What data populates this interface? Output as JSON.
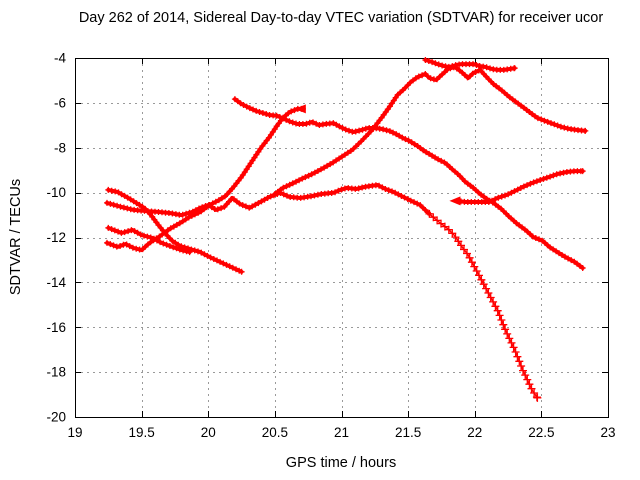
{
  "title": "Day 262 of 2014, Sidereal Day-to-day VTEC variation (SDTVAR) for receiver ucor",
  "chart_data": {
    "type": "scatter",
    "title": "Day 262 of 2014, Sidereal Day-to-day VTEC variation (SDTVAR) for receiver ucor",
    "xlabel": "GPS time / hours",
    "ylabel": "SDTVAR / TECUs",
    "xlim": [
      19,
      23
    ],
    "ylim": [
      -20,
      -4
    ],
    "xtick_step": 0.5,
    "ytick_step": 2,
    "grid": true,
    "legend": "none",
    "series_color": "#ff0000",
    "frame_color": "#000000",
    "grid_color": "#9a9a9a",
    "series": [
      {
        "name": "s1",
        "style": "band",
        "points": [
          [
            19.25,
            -9.88
          ],
          [
            19.32,
            -9.97
          ],
          [
            19.4,
            -10.24
          ],
          [
            19.46,
            -10.46
          ],
          [
            19.52,
            -10.68
          ],
          [
            19.57,
            -11.0
          ],
          [
            19.62,
            -11.4
          ],
          [
            19.68,
            -11.84
          ],
          [
            19.73,
            -12.15
          ],
          [
            19.79,
            -12.38
          ],
          [
            19.86,
            -12.51
          ],
          [
            19.94,
            -12.65
          ],
          [
            20.01,
            -12.87
          ],
          [
            20.09,
            -13.09
          ],
          [
            20.17,
            -13.31
          ],
          [
            20.25,
            -13.53
          ]
        ]
      },
      {
        "name": "s2",
        "style": "band",
        "points": [
          [
            19.24,
            -10.46
          ],
          [
            19.35,
            -10.64
          ],
          [
            19.44,
            -10.77
          ],
          [
            19.53,
            -10.82
          ],
          [
            19.62,
            -10.86
          ],
          [
            19.71,
            -10.91
          ],
          [
            19.8,
            -11.0
          ],
          [
            19.88,
            -10.86
          ],
          [
            19.94,
            -10.68
          ],
          [
            20.0,
            -10.55
          ],
          [
            20.06,
            -10.77
          ],
          [
            20.12,
            -10.64
          ],
          [
            20.18,
            -10.24
          ],
          [
            20.24,
            -10.51
          ],
          [
            20.31,
            -10.68
          ],
          [
            20.39,
            -10.42
          ],
          [
            20.46,
            -10.19
          ],
          [
            20.54,
            -10.01
          ],
          [
            20.61,
            -10.19
          ],
          [
            20.69,
            -10.24
          ],
          [
            20.78,
            -10.15
          ],
          [
            20.85,
            -10.06
          ],
          [
            20.94,
            -10.01
          ],
          [
            20.99,
            -9.88
          ],
          [
            21.04,
            -9.79
          ],
          [
            21.11,
            -9.84
          ],
          [
            21.17,
            -9.75
          ],
          [
            21.22,
            -9.7
          ],
          [
            21.27,
            -9.66
          ],
          [
            21.33,
            -9.84
          ],
          [
            21.39,
            -9.97
          ],
          [
            21.45,
            -10.15
          ],
          [
            21.51,
            -10.33
          ],
          [
            21.59,
            -10.55
          ],
          [
            21.66,
            -10.95
          ]
        ]
      },
      {
        "name": "s2-plunge",
        "style": "plus",
        "points": [
          [
            21.66,
            -10.95
          ],
          [
            21.74,
            -11.35
          ],
          [
            21.8,
            -11.62
          ],
          [
            21.85,
            -11.93
          ],
          [
            21.9,
            -12.38
          ],
          [
            21.95,
            -12.78
          ],
          [
            21.99,
            -13.22
          ],
          [
            22.05,
            -13.89
          ],
          [
            22.11,
            -14.56
          ],
          [
            22.17,
            -15.23
          ],
          [
            22.23,
            -16.12
          ],
          [
            22.3,
            -17.01
          ],
          [
            22.36,
            -17.9
          ],
          [
            22.43,
            -18.79
          ],
          [
            22.47,
            -19.15
          ]
        ]
      },
      {
        "name": "s3",
        "style": "band",
        "points": [
          [
            19.25,
            -11.57
          ],
          [
            19.35,
            -11.8
          ],
          [
            19.43,
            -11.66
          ],
          [
            19.5,
            -11.89
          ],
          [
            19.58,
            -12.02
          ],
          [
            19.65,
            -12.24
          ],
          [
            19.73,
            -12.42
          ],
          [
            19.8,
            -12.56
          ],
          [
            19.86,
            -12.65
          ]
        ]
      },
      {
        "name": "s4",
        "style": "band",
        "points": [
          [
            19.24,
            -12.24
          ],
          [
            19.32,
            -12.42
          ],
          [
            19.38,
            -12.29
          ],
          [
            19.44,
            -12.47
          ],
          [
            19.5,
            -12.56
          ],
          [
            19.56,
            -12.24
          ],
          [
            19.64,
            -11.93
          ],
          [
            19.71,
            -11.62
          ],
          [
            19.79,
            -11.35
          ],
          [
            19.86,
            -11.08
          ],
          [
            19.94,
            -10.86
          ],
          [
            20.01,
            -10.55
          ],
          [
            20.07,
            -10.37
          ],
          [
            20.13,
            -10.15
          ],
          [
            20.19,
            -9.75
          ],
          [
            20.25,
            -9.3
          ],
          [
            20.3,
            -8.86
          ],
          [
            20.35,
            -8.41
          ],
          [
            20.4,
            -7.97
          ],
          [
            20.46,
            -7.52
          ],
          [
            20.51,
            -7.07
          ],
          [
            20.56,
            -6.67
          ],
          [
            20.61,
            -6.41
          ],
          [
            20.67,
            -6.27
          ],
          [
            20.71,
            -6.27
          ]
        ]
      },
      {
        "name": "s5",
        "style": "band",
        "points": [
          [
            20.5,
            -10.06
          ],
          [
            20.56,
            -9.79
          ],
          [
            20.64,
            -9.57
          ],
          [
            20.7,
            -9.39
          ],
          [
            20.78,
            -9.17
          ],
          [
            20.85,
            -8.95
          ],
          [
            20.93,
            -8.68
          ],
          [
            21.0,
            -8.41
          ],
          [
            21.08,
            -8.1
          ],
          [
            21.15,
            -7.7
          ],
          [
            21.23,
            -7.21
          ],
          [
            21.3,
            -6.67
          ],
          [
            21.36,
            -6.18
          ],
          [
            21.42,
            -5.65
          ],
          [
            21.47,
            -5.38
          ],
          [
            21.52,
            -5.07
          ],
          [
            21.57,
            -4.85
          ],
          [
            21.63,
            -4.71
          ],
          [
            21.66,
            -4.89
          ],
          [
            21.71,
            -4.98
          ],
          [
            21.75,
            -4.76
          ],
          [
            21.8,
            -4.49
          ],
          [
            21.85,
            -4.4
          ],
          [
            21.9,
            -4.62
          ],
          [
            21.95,
            -4.89
          ],
          [
            21.99,
            -4.67
          ],
          [
            22.04,
            -4.53
          ],
          [
            22.09,
            -4.85
          ],
          [
            22.14,
            -5.16
          ],
          [
            22.2,
            -5.43
          ],
          [
            22.26,
            -5.74
          ],
          [
            22.31,
            -5.96
          ],
          [
            22.36,
            -6.18
          ],
          [
            22.42,
            -6.45
          ],
          [
            22.47,
            -6.67
          ],
          [
            22.53,
            -6.81
          ],
          [
            22.59,
            -6.94
          ],
          [
            22.65,
            -7.07
          ],
          [
            22.71,
            -7.16
          ],
          [
            22.77,
            -7.21
          ],
          [
            22.83,
            -7.25
          ]
        ]
      },
      {
        "name": "s6",
        "style": "band",
        "points": [
          [
            21.63,
            -4.09
          ],
          [
            21.68,
            -4.18
          ],
          [
            21.72,
            -4.27
          ],
          [
            21.77,
            -4.36
          ],
          [
            21.81,
            -4.4
          ],
          [
            21.86,
            -4.31
          ],
          [
            21.9,
            -4.27
          ],
          [
            21.95,
            -4.27
          ],
          [
            21.99,
            -4.27
          ],
          [
            22.04,
            -4.36
          ],
          [
            22.08,
            -4.4
          ],
          [
            22.13,
            -4.49
          ],
          [
            22.17,
            -4.53
          ],
          [
            22.22,
            -4.53
          ],
          [
            22.26,
            -4.49
          ],
          [
            22.3,
            -4.45
          ]
        ]
      },
      {
        "name": "s7",
        "style": "band",
        "points": [
          [
            20.2,
            -5.83
          ],
          [
            20.25,
            -6.05
          ],
          [
            20.31,
            -6.23
          ],
          [
            20.36,
            -6.36
          ],
          [
            20.41,
            -6.45
          ],
          [
            20.46,
            -6.54
          ],
          [
            20.52,
            -6.58
          ],
          [
            20.57,
            -6.72
          ],
          [
            20.62,
            -6.85
          ],
          [
            20.67,
            -6.94
          ],
          [
            20.73,
            -6.94
          ],
          [
            20.78,
            -6.85
          ],
          [
            20.83,
            -6.99
          ],
          [
            20.88,
            -6.94
          ],
          [
            20.94,
            -6.9
          ],
          [
            20.99,
            -7.07
          ],
          [
            21.04,
            -7.21
          ],
          [
            21.09,
            -7.3
          ],
          [
            21.15,
            -7.21
          ],
          [
            21.2,
            -7.12
          ],
          [
            21.25,
            -7.12
          ],
          [
            21.3,
            -7.16
          ],
          [
            21.36,
            -7.25
          ],
          [
            21.41,
            -7.39
          ],
          [
            21.46,
            -7.56
          ],
          [
            21.51,
            -7.7
          ],
          [
            21.57,
            -7.92
          ],
          [
            21.62,
            -8.14
          ],
          [
            21.67,
            -8.32
          ],
          [
            21.72,
            -8.5
          ],
          [
            21.78,
            -8.68
          ],
          [
            21.83,
            -8.95
          ],
          [
            21.88,
            -9.21
          ],
          [
            21.93,
            -9.52
          ],
          [
            21.99,
            -9.79
          ],
          [
            22.04,
            -10.06
          ],
          [
            22.09,
            -10.28
          ],
          [
            22.14,
            -10.46
          ],
          [
            22.2,
            -10.73
          ],
          [
            22.26,
            -11.08
          ],
          [
            22.32,
            -11.4
          ],
          [
            22.38,
            -11.66
          ],
          [
            22.44,
            -11.98
          ],
          [
            22.51,
            -12.15
          ],
          [
            22.56,
            -12.42
          ],
          [
            22.62,
            -12.65
          ],
          [
            22.68,
            -12.87
          ],
          [
            22.75,
            -13.09
          ],
          [
            22.81,
            -13.36
          ]
        ]
      },
      {
        "name": "s8",
        "style": "band",
        "points": [
          [
            21.87,
            -10.37
          ],
          [
            21.93,
            -10.42
          ],
          [
            21.99,
            -10.42
          ],
          [
            22.05,
            -10.42
          ],
          [
            22.11,
            -10.42
          ],
          [
            22.17,
            -10.24
          ],
          [
            22.24,
            -10.1
          ],
          [
            22.3,
            -9.93
          ],
          [
            22.36,
            -9.75
          ],
          [
            22.43,
            -9.57
          ],
          [
            22.49,
            -9.44
          ],
          [
            22.56,
            -9.3
          ],
          [
            22.62,
            -9.17
          ],
          [
            22.69,
            -9.08
          ],
          [
            22.75,
            -9.04
          ],
          [
            22.81,
            -9.04
          ]
        ]
      }
    ],
    "arrows": [
      {
        "t": 21.87,
        "v": -10.37,
        "dir": "left"
      },
      {
        "t": 20.71,
        "v": -6.27,
        "dir": "left"
      }
    ]
  }
}
